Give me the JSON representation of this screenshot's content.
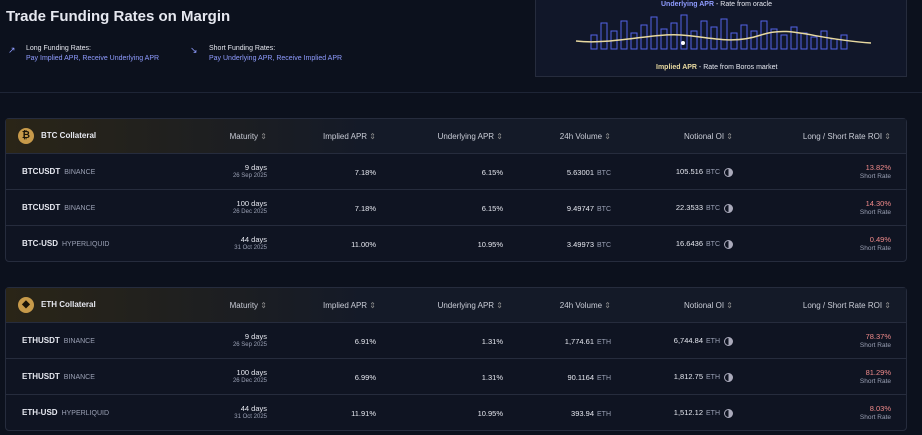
{
  "header": {
    "title": "Trade Funding Rates on Margin",
    "long": {
      "label": "Long Funding Rates:",
      "pay": "Pay Implied APR,",
      "receive": "Receive Underlying APR"
    },
    "short": {
      "label": "Short Funding Rates:",
      "pay": "Pay Underlying APR,",
      "receive": "Receive Implied APR"
    },
    "legend": {
      "underlying": "Underlying APR",
      "underlying_note": "- Rate from oracle",
      "implied": "Implied APR",
      "implied_note": "- Rate from Boros market"
    }
  },
  "columns": [
    "Maturity",
    "Implied APR",
    "Underlying APR",
    "24h Volume",
    "Notional OI",
    "Long / Short Rate ROI"
  ],
  "tables": [
    {
      "title": "BTC Collateral",
      "icon": "₿",
      "rows": [
        {
          "pair": "BTCUSDT",
          "exchange": "BINANCE",
          "maturity": "9 days",
          "date": "26 Sep 2025",
          "implied": "7.18%",
          "underlying": "6.15%",
          "volume": "5.63001",
          "volume_unit": "BTC",
          "oi": "105.516",
          "oi_unit": "BTC",
          "roi": "13.82%",
          "side": "Short Rate"
        },
        {
          "pair": "BTCUSDT",
          "exchange": "BINANCE",
          "maturity": "100 days",
          "date": "26 Dec 2025",
          "implied": "7.18%",
          "underlying": "6.15%",
          "volume": "9.49747",
          "volume_unit": "BTC",
          "oi": "22.3533",
          "oi_unit": "BTC",
          "roi": "14.30%",
          "side": "Short Rate"
        },
        {
          "pair": "BTC-USD",
          "exchange": "HYPERLIQUID",
          "maturity": "44 days",
          "date": "31 Oct 2025",
          "implied": "11.00%",
          "underlying": "10.95%",
          "volume": "3.49973",
          "volume_unit": "BTC",
          "oi": "16.6436",
          "oi_unit": "BTC",
          "roi": "0.49%",
          "side": "Short Rate"
        }
      ]
    },
    {
      "title": "ETH Collateral",
      "icon": "◆",
      "rows": [
        {
          "pair": "ETHUSDT",
          "exchange": "BINANCE",
          "maturity": "9 days",
          "date": "26 Sep 2025",
          "implied": "6.91%",
          "underlying": "1.31%",
          "volume": "1,774.61",
          "volume_unit": "ETH",
          "oi": "6,744.84",
          "oi_unit": "ETH",
          "roi": "78.37%",
          "side": "Short Rate"
        },
        {
          "pair": "ETHUSDT",
          "exchange": "BINANCE",
          "maturity": "100 days",
          "date": "26 Dec 2025",
          "implied": "6.99%",
          "underlying": "1.31%",
          "volume": "90.1164",
          "volume_unit": "ETH",
          "oi": "1,812.75",
          "oi_unit": "ETH",
          "roi": "81.29%",
          "side": "Short Rate"
        },
        {
          "pair": "ETH-USD",
          "exchange": "HYPERLIQUID",
          "maturity": "44 days",
          "date": "31 Oct 2025",
          "implied": "11.91%",
          "underlying": "10.95%",
          "volume": "393.94",
          "volume_unit": "ETH",
          "oi": "1,512.12",
          "oi_unit": "ETH",
          "roi": "8.03%",
          "side": "Short Rate"
        }
      ]
    }
  ]
}
